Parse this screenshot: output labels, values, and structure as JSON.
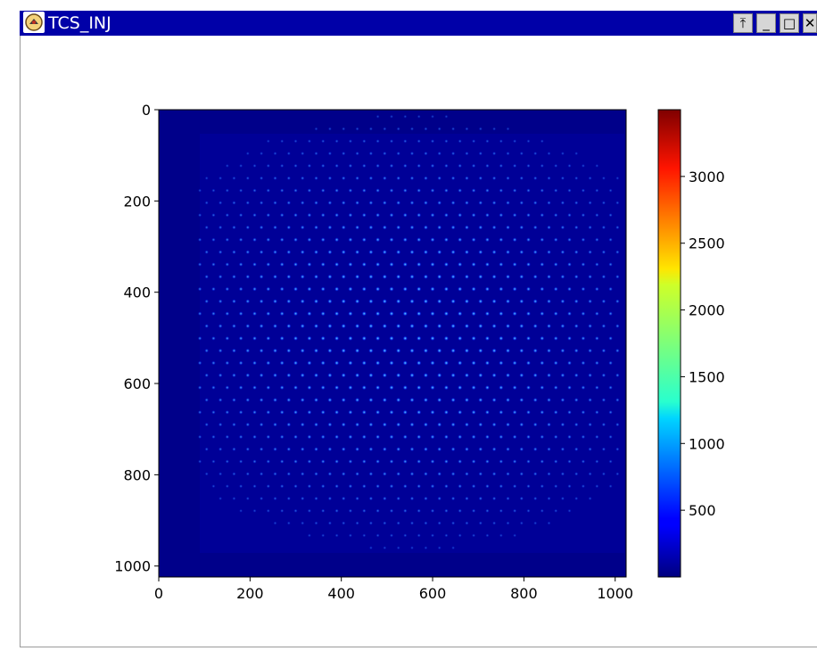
{
  "window": {
    "title": "TCS_INJ",
    "icon": "app-icon",
    "buttons": [
      {
        "name": "stay-on-top-button",
        "glyph": "⤒"
      },
      {
        "name": "minimize-button",
        "glyph": "_"
      },
      {
        "name": "maximize-button",
        "glyph": "□"
      },
      {
        "name": "close-button",
        "glyph": "✕"
      }
    ],
    "colors": {
      "titlebar": "#0000a8",
      "title_text": "#ffffff"
    }
  },
  "chart_data": {
    "type": "heatmap",
    "colormap": "jet",
    "x": {
      "lim": [
        0,
        1024
      ],
      "ticks": [
        0,
        200,
        400,
        600,
        800,
        1000
      ]
    },
    "y": {
      "lim": [
        1024,
        0
      ],
      "ticks": [
        0,
        200,
        400,
        600,
        800,
        1000
      ],
      "inverted": true
    },
    "colorbar": {
      "lim": [
        0,
        3500
      ],
      "ticks": [
        500,
        1000,
        1500,
        2000,
        2500,
        3000
      ]
    },
    "background_value": 0,
    "spots": {
      "pattern": "hexagonal",
      "x_range": [
        90,
        1010
      ],
      "y_range": [
        15,
        960
      ],
      "x_spacing": 30,
      "y_spacing": 27,
      "typical_intensity": 600,
      "peak_intensity": 1100
    }
  }
}
